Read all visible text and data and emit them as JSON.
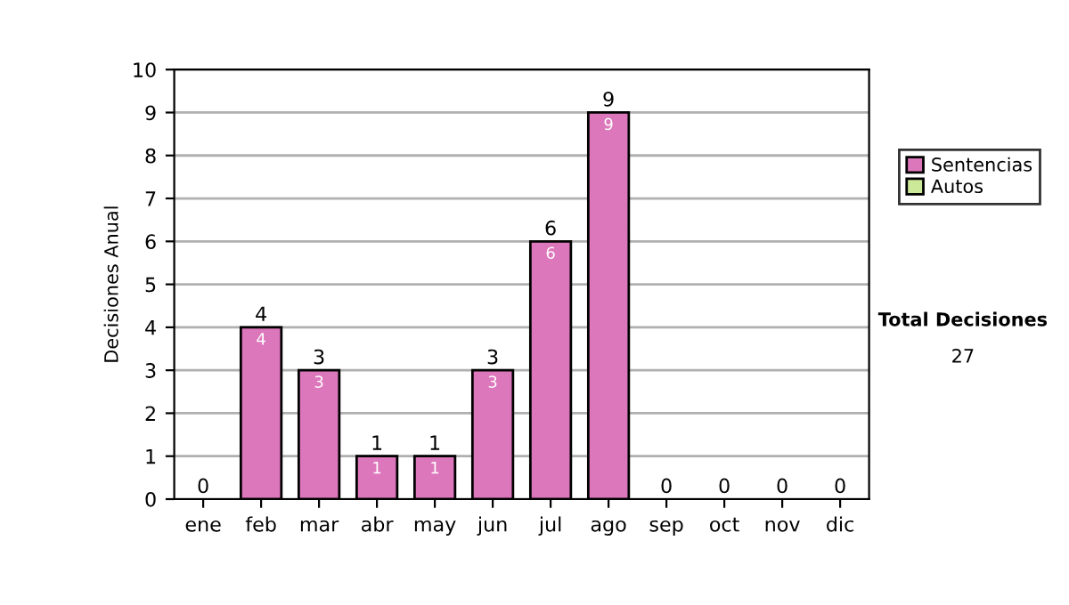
{
  "chart_data": {
    "type": "bar",
    "stacked": true,
    "ylabel": "Decisiones Anual",
    "categories": [
      "ene",
      "feb",
      "mar",
      "abr",
      "may",
      "jun",
      "jul",
      "ago",
      "sep",
      "oct",
      "nov",
      "dic"
    ],
    "series": [
      {
        "name": "Sentencias",
        "color": "#dd77bb",
        "values": [
          0,
          4,
          3,
          1,
          1,
          3,
          6,
          9,
          0,
          0,
          0,
          0
        ],
        "value_labels": [
          null,
          "4",
          "3",
          "1",
          "1",
          "3",
          "6",
          "9",
          null,
          null,
          null,
          null
        ]
      },
      {
        "name": "Autos",
        "color": "#cce899",
        "values": [
          0,
          0,
          0,
          0,
          0,
          0,
          0,
          0,
          0,
          0,
          0,
          0
        ]
      }
    ],
    "totals": [
      "0",
      "4",
      "3",
      "1",
      "1",
      "3",
      "6",
      "9",
      "0",
      "0",
      "0",
      "0"
    ],
    "ylim": [
      0,
      10
    ],
    "yticks": [
      0,
      1,
      2,
      3,
      4,
      5,
      6,
      7,
      8,
      9,
      10
    ],
    "grid": "y",
    "legend": "right",
    "annotations": [
      "Total Decisiones",
      "27"
    ]
  }
}
